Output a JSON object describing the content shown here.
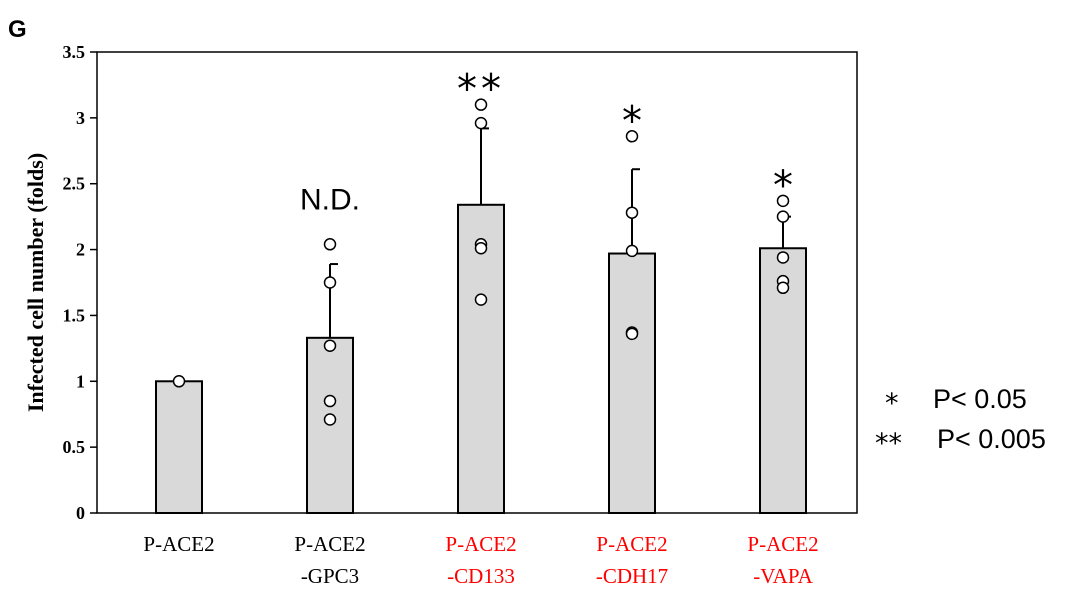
{
  "panel_label": "G",
  "legend": [
    {
      "symbol": "*",
      "text": "P< 0.05"
    },
    {
      "symbol": "**",
      "text": "P< 0.005"
    }
  ],
  "chart_data": {
    "type": "bar",
    "ylabel": "Infected cell number (folds)",
    "ylim": [
      0,
      3.5
    ],
    "yticks": [
      0,
      0.5,
      1,
      1.5,
      2,
      2.5,
      3,
      3.5
    ],
    "ytick_labels": [
      "0",
      "0.5",
      "1",
      "1.5",
      "2",
      "2.5",
      "3",
      "3.5"
    ],
    "categories": [
      {
        "lines": [
          "P-ACE2"
        ],
        "color": "#000000"
      },
      {
        "lines": [
          "P-ACE2",
          "-GPC3"
        ],
        "color": "#000000"
      },
      {
        "lines": [
          "P-ACE2",
          "-CD133"
        ],
        "color": "#ff0000"
      },
      {
        "lines": [
          "P-ACE2",
          "-CDH17"
        ],
        "color": "#ff0000"
      },
      {
        "lines": [
          "P-ACE2",
          "-VAPA"
        ],
        "color": "#ff0000"
      }
    ],
    "values": [
      1.0,
      1.33,
      2.34,
      1.97,
      2.01
    ],
    "error_upper": [
      1.0,
      1.89,
      2.92,
      2.61,
      2.25
    ],
    "points": [
      [
        1.0
      ],
      [
        2.04,
        1.75,
        1.27,
        0.85,
        0.71
      ],
      [
        3.1,
        2.96,
        2.04,
        2.01,
        1.62
      ],
      [
        2.86,
        2.28,
        1.99,
        1.37,
        1.36
      ],
      [
        2.37,
        2.25,
        1.94,
        1.76,
        1.71
      ]
    ],
    "annotations": [
      "",
      "N.D.",
      "**",
      "*",
      "*"
    ],
    "bar_color": "#d9d9d9",
    "grid": false
  }
}
